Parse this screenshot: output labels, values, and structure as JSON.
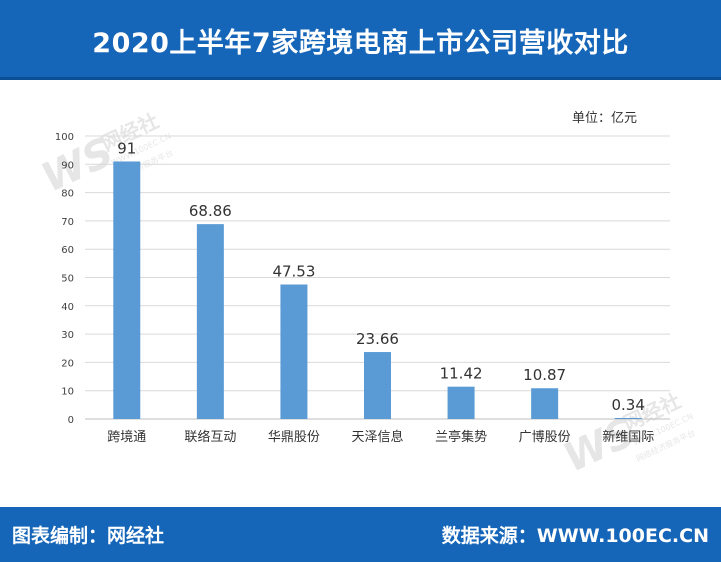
{
  "header": {
    "title": "2020上半年7家跨境电商上市公司营收对比"
  },
  "unit_label": "单位：亿元",
  "footer": {
    "left_text": "图表编制：网经社",
    "right_text": "数据来源：WWW.100EC.CN"
  },
  "watermark": {
    "brand": "网经社",
    "url": "WWW.100EC.CN",
    "tagline": "网络经济服务平台"
  },
  "colors": {
    "brand_blue": "#1565b8",
    "bar": "#5b9bd5",
    "grid": "#d9d9d9"
  },
  "chart_data": {
    "type": "bar",
    "categories": [
      "跨境通",
      "联络互动",
      "华鼎股份",
      "天泽信息",
      "兰亭集势",
      "广博股份",
      "新维国际"
    ],
    "values": [
      91,
      68.86,
      47.53,
      23.66,
      11.42,
      10.87,
      0.34
    ],
    "data_labels": [
      "91",
      "68.86",
      "47.53",
      "23.66",
      "11.42",
      "10.87",
      "0.34"
    ],
    "yticks": [
      0,
      10,
      20,
      30,
      40,
      50,
      60,
      70,
      80,
      90,
      100
    ],
    "ylim": [
      0,
      100
    ],
    "grid": true,
    "legend": "none"
  }
}
